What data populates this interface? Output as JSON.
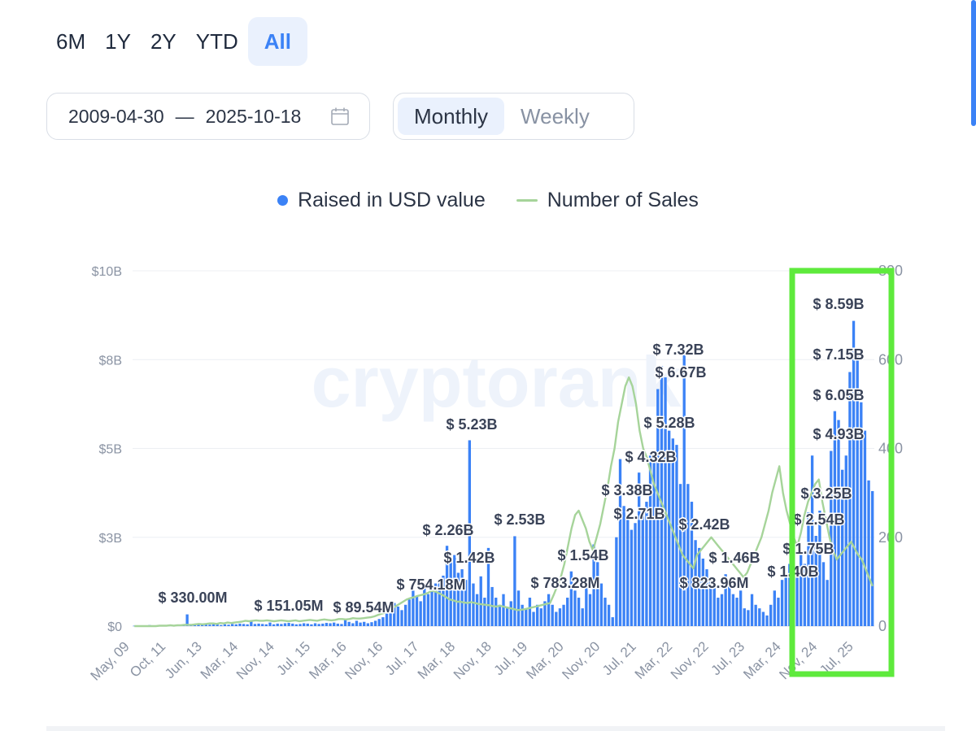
{
  "period_tabs": [
    {
      "label": "6M",
      "active": false
    },
    {
      "label": "1Y",
      "active": false
    },
    {
      "label": "2Y",
      "active": false
    },
    {
      "label": "YTD",
      "active": false
    },
    {
      "label": "All",
      "active": true
    }
  ],
  "date_range": {
    "start": "2009-04-30",
    "separator": "—",
    "end": "2025-10-18"
  },
  "granularity": [
    {
      "label": "Monthly",
      "active": true
    },
    {
      "label": "Weekly",
      "active": false
    }
  ],
  "colors": {
    "bar": "#3b82f6",
    "line": "#a6d49a",
    "highlight": "#5eea3c",
    "accent": "#3b82f6"
  },
  "chart_data": {
    "type": "bar",
    "watermark": "cryptorank",
    "legend": [
      "Raised in USD value",
      "Number of Sales"
    ],
    "legend_position": "top-center",
    "grid": true,
    "y_left": {
      "ticks": [
        "$0",
        "$3B",
        "$5B",
        "$8B",
        "$10B"
      ],
      "range": [
        0,
        10
      ]
    },
    "y_right": {
      "ticks": [
        "0",
        "200",
        "400",
        "600",
        "800"
      ],
      "range": [
        0,
        800
      ]
    },
    "x_ticks": [
      "May, 09",
      "Oct, 11",
      "Jun, 13",
      "Mar, 14",
      "Nov, 14",
      "Jul, 15",
      "Mar, 16",
      "Nov, 16",
      "Jul, 17",
      "Mar, 18",
      "Nov, 18",
      "Jul, 19",
      "Mar, 20",
      "Nov, 20",
      "Jul, 21",
      "Mar, 22",
      "Nov, 22",
      "Jul, 23",
      "Mar, 24",
      "Nov, 24",
      "Jul, 25"
    ],
    "series": [
      {
        "name": "Raised in USD value",
        "kind": "bar",
        "axis": "left",
        "values": [
          0.01,
          0.02,
          0.02,
          0.01,
          0.03,
          0.02,
          0.02,
          0.03,
          0.02,
          0.01,
          0.03,
          0.02,
          0.02,
          0.03,
          0.33,
          0.04,
          0.03,
          0.05,
          0.04,
          0.06,
          0.04,
          0.05,
          0.06,
          0.03,
          0.05,
          0.04,
          0.06,
          0.05,
          0.07,
          0.06,
          0.05,
          0.15,
          0.06,
          0.07,
          0.06,
          0.05,
          0.1,
          0.05,
          0.07,
          0.06,
          0.08,
          0.09,
          0.07,
          0.05,
          0.06,
          0.08,
          0.07,
          0.05,
          0.08,
          0.06,
          0.07,
          0.09,
          0.08,
          0.1,
          0.07,
          0.06,
          0.2,
          0.12,
          0.08,
          0.15,
          0.1,
          0.12,
          0.08,
          0.11,
          0.15,
          0.2,
          0.25,
          0.35,
          0.5,
          0.65,
          0.55,
          0.45,
          0.6,
          0.75,
          1.0,
          0.85,
          0.7,
          1.1,
          0.9,
          1.0,
          1.2,
          1.3,
          1.42,
          2.26,
          1.8,
          2.0,
          1.5,
          1.6,
          1.3,
          5.23,
          1.2,
          0.9,
          1.4,
          0.8,
          2.2,
          1.1,
          0.8,
          0.6,
          0.9,
          0.5,
          0.7,
          2.53,
          1.0,
          0.6,
          0.5,
          0.8,
          0.4,
          0.6,
          0.5,
          0.7,
          0.9,
          0.6,
          0.4,
          0.5,
          0.6,
          0.8,
          1.54,
          1.0,
          0.8,
          0.5,
          1.2,
          0.9,
          2.3,
          1.8,
          1.2,
          0.8,
          0.6,
          0.25,
          2.5,
          4.7,
          3.38,
          3.0,
          2.71,
          2.9,
          4.32,
          3.2,
          3.5,
          4.8,
          4.9,
          6.67,
          7.32,
          7.0,
          5.5,
          5.28,
          5.1,
          4.0,
          7.7,
          4.0,
          3.5,
          2.42,
          2.2,
          1.9,
          1.6,
          1.3,
          1.1,
          0.8,
          0.9,
          1.46,
          1.2,
          0.9,
          0.8,
          1.0,
          0.5,
          0.45,
          0.9,
          0.6,
          0.5,
          0.4,
          0.3,
          0.6,
          1.0,
          0.8,
          1.3,
          1.4,
          1.75,
          1.3,
          1.4,
          2.0,
          1.75,
          3.2,
          4.8,
          2.54,
          3.25,
          1.8,
          1.3,
          4.93,
          6.05,
          5.8,
          4.4,
          4.8,
          7.15,
          8.59,
          7.6,
          6.3,
          5.5,
          4.1,
          3.8
        ]
      },
      {
        "name": "Number of Sales",
        "kind": "line",
        "axis": "right",
        "values": [
          0,
          0,
          0,
          0,
          0,
          0,
          0,
          1,
          1,
          1,
          2,
          1,
          2,
          2,
          3,
          3,
          3,
          4,
          5,
          4,
          5,
          6,
          6,
          5,
          7,
          6,
          8,
          7,
          8,
          9,
          10,
          12,
          11,
          12,
          13,
          12,
          12,
          13,
          12,
          11,
          12,
          13,
          12,
          11,
          12,
          13,
          11,
          12,
          13,
          14,
          13,
          12,
          14,
          15,
          14,
          13,
          14,
          16,
          16,
          15,
          16,
          18,
          17,
          17,
          18,
          19,
          20,
          22,
          25,
          28,
          30,
          35,
          40,
          45,
          50,
          55,
          60,
          63,
          65,
          68,
          70,
          72,
          75,
          80,
          78,
          74,
          70,
          65,
          60,
          58,
          55,
          55,
          53,
          52,
          54,
          52,
          50,
          49,
          48,
          47,
          45,
          44,
          46,
          44,
          42,
          40,
          38,
          36,
          37,
          38,
          40,
          42,
          44,
          46,
          48,
          50,
          52,
          70,
          90,
          110,
          140,
          180,
          220,
          250,
          260,
          240,
          220,
          190,
          170,
          200,
          230,
          270,
          310,
          360,
          400,
          460,
          500,
          540,
          560,
          540,
          500,
          440,
          400,
          380,
          350,
          320,
          300,
          280,
          260,
          240,
          220,
          200,
          180,
          160,
          150,
          140,
          130,
          160,
          170,
          180,
          190,
          200,
          190,
          180,
          170,
          160,
          150,
          140,
          130,
          120,
          110,
          120,
          140,
          160,
          180,
          200,
          230,
          260,
          300,
          330,
          360,
          300,
          260,
          230,
          200,
          180,
          210,
          250,
          280,
          300,
          320,
          330,
          280,
          240,
          200,
          170,
          150,
          160,
          170,
          180,
          190,
          175,
          160,
          150,
          130,
          110,
          90
        ]
      }
    ],
    "bar_labels": [
      {
        "text": "$ 330.00M"
      },
      {
        "text": "$ 151.05M"
      },
      {
        "text": "$ 89.54M"
      },
      {
        "text": "$ 754.18M"
      },
      {
        "text": "$ 2.26B"
      },
      {
        "text": "$ 1.42B"
      },
      {
        "text": "$ 5.23B"
      },
      {
        "text": "$ 2.53B"
      },
      {
        "text": "$ 783.28M"
      },
      {
        "text": "$ 1.54B"
      },
      {
        "text": "$ 3.38B"
      },
      {
        "text": "$ 2.71B"
      },
      {
        "text": "$ 4.32B"
      },
      {
        "text": "$ 6.67B"
      },
      {
        "text": "$ 7.32B"
      },
      {
        "text": "$ 5.28B"
      },
      {
        "text": "$ 2.42B"
      },
      {
        "text": "$ 823.96M"
      },
      {
        "text": "$ 1.46B"
      },
      {
        "text": "$ 1.40B"
      },
      {
        "text": "$ 1.75B"
      },
      {
        "text": "$ 2.54B"
      },
      {
        "text": "$ 3.25B"
      },
      {
        "text": "$ 4.93B"
      },
      {
        "text": "$ 6.05B"
      },
      {
        "text": "$ 7.15B"
      },
      {
        "text": "$ 8.59B"
      }
    ]
  }
}
